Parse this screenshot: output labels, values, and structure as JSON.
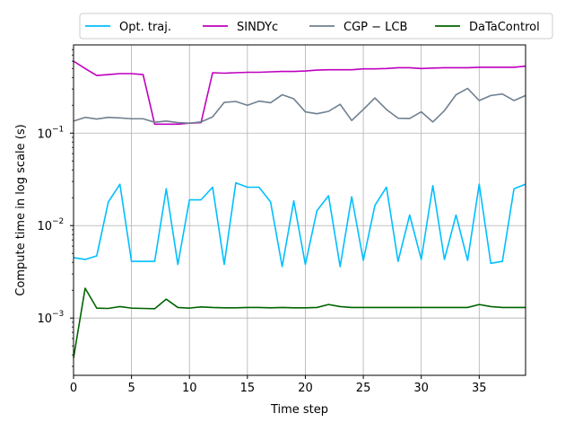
{
  "chart_data": {
    "type": "line",
    "xlabel": "Time step",
    "ylabel": "Compute time in log scale (s)",
    "x_scale": "linear",
    "y_scale": "log",
    "xlim": [
      0,
      39
    ],
    "ylim": [
      0.00024,
      0.9
    ],
    "grid": true,
    "legend_position": "top",
    "x_ticks": [
      0,
      5,
      10,
      15,
      20,
      25,
      30,
      35
    ],
    "x_tick_labels": [
      "0",
      "5",
      "10",
      "15",
      "20",
      "25",
      "30",
      "35"
    ],
    "y_ticks": [
      0.001,
      0.01,
      0.1
    ],
    "y_tick_labels": [
      "10",
      "10",
      "10"
    ],
    "y_tick_exponents": [
      "−3",
      "−2",
      "−1"
    ],
    "x": [
      0,
      1,
      2,
      3,
      4,
      5,
      6,
      7,
      8,
      9,
      10,
      11,
      12,
      13,
      14,
      15,
      16,
      17,
      18,
      19,
      20,
      21,
      22,
      23,
      24,
      25,
      26,
      27,
      28,
      29,
      30,
      31,
      32,
      33,
      34,
      35,
      36,
      37,
      38,
      39
    ],
    "series": [
      {
        "name": "Opt. traj.",
        "color": "#00bfff",
        "values": [
          0.0045,
          0.0043,
          0.0047,
          0.018,
          0.028,
          0.0041,
          0.0041,
          0.0041,
          0.025,
          0.0038,
          0.019,
          0.019,
          0.026,
          0.0038,
          0.029,
          0.026,
          0.026,
          0.018,
          0.0036,
          0.0185,
          0.0038,
          0.0145,
          0.021,
          0.0036,
          0.0205,
          0.0042,
          0.0165,
          0.026,
          0.0041,
          0.013,
          0.0043,
          0.027,
          0.0043,
          0.013,
          0.0042,
          0.028,
          0.0039,
          0.0041,
          0.025,
          0.028
        ]
      },
      {
        "name": "SINDYc",
        "color": "#bf00bf",
        "values": [
          0.6,
          0.5,
          0.42,
          0.43,
          0.44,
          0.44,
          0.43,
          0.125,
          0.125,
          0.125,
          0.128,
          0.13,
          0.45,
          0.445,
          0.45,
          0.455,
          0.455,
          0.46,
          0.465,
          0.465,
          0.47,
          0.48,
          0.485,
          0.485,
          0.485,
          0.495,
          0.495,
          0.5,
          0.51,
          0.51,
          0.5,
          0.505,
          0.51,
          0.51,
          0.51,
          0.515,
          0.515,
          0.515,
          0.515,
          0.53
        ]
      },
      {
        "name": "CGP − LCB",
        "color": "#708090",
        "values": [
          0.135,
          0.148,
          0.142,
          0.148,
          0.146,
          0.143,
          0.143,
          0.131,
          0.135,
          0.13,
          0.128,
          0.132,
          0.15,
          0.215,
          0.22,
          0.2,
          0.222,
          0.213,
          0.26,
          0.235,
          0.17,
          0.162,
          0.172,
          0.205,
          0.137,
          0.18,
          0.24,
          0.18,
          0.145,
          0.144,
          0.17,
          0.132,
          0.175,
          0.26,
          0.305,
          0.225,
          0.255,
          0.265,
          0.225,
          0.255
        ]
      },
      {
        "name": "DaTaControl",
        "color": "#006400",
        "values": [
          0.00037,
          0.0021,
          0.00128,
          0.00127,
          0.00133,
          0.00128,
          0.00127,
          0.00126,
          0.0016,
          0.0013,
          0.00128,
          0.00132,
          0.0013,
          0.00129,
          0.00129,
          0.0013,
          0.0013,
          0.00129,
          0.0013,
          0.00129,
          0.00129,
          0.0013,
          0.0014,
          0.00133,
          0.0013,
          0.0013,
          0.0013,
          0.0013,
          0.0013,
          0.0013,
          0.0013,
          0.0013,
          0.0013,
          0.0013,
          0.0013,
          0.0014,
          0.00133,
          0.0013,
          0.0013,
          0.0013
        ]
      }
    ]
  }
}
